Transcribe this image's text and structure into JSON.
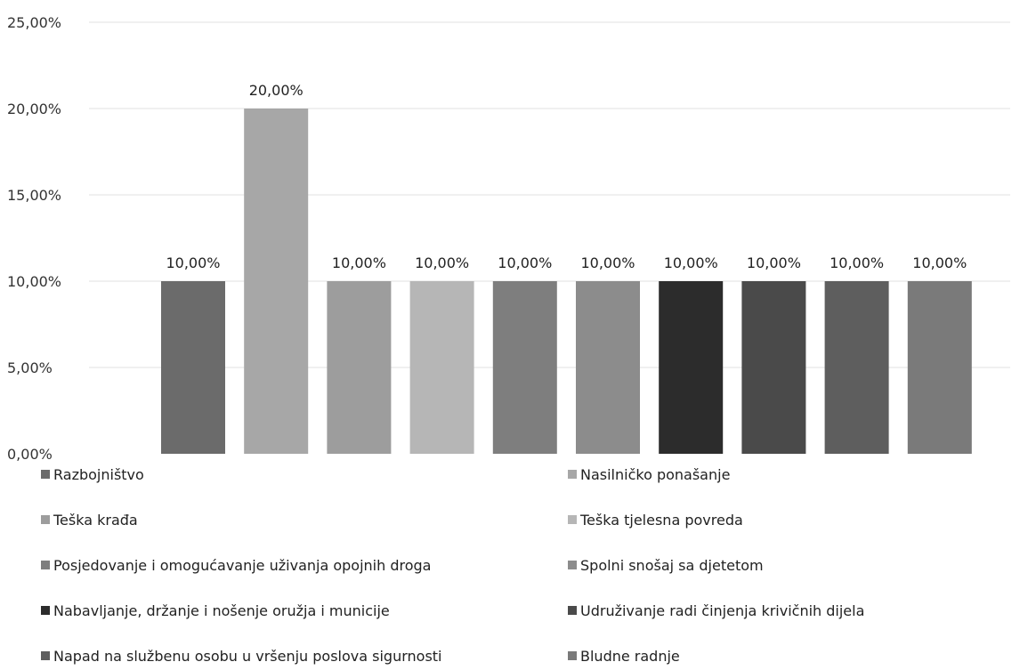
{
  "chart_data": {
    "type": "bar",
    "ylim": [
      0,
      25
    ],
    "y_ticks": [
      "0,00%",
      "5,00%",
      "10,00%",
      "15,00%",
      "20,00%",
      "25,00%"
    ],
    "grid": true,
    "legend_position": "bottom",
    "series": [
      {
        "name": "Razbojništvo",
        "value": 10,
        "label": "10,00%",
        "color": "#6b6b6b"
      },
      {
        "name": "Nasilničko ponašanje",
        "value": 20,
        "label": "20,00%",
        "color": "#a7a7a7"
      },
      {
        "name": "Teška krađa",
        "value": 10,
        "label": "10,00%",
        "color": "#9d9d9d"
      },
      {
        "name": "Teška tjelesna povreda",
        "value": 10,
        "label": "10,00%",
        "color": "#b6b6b6"
      },
      {
        "name": "Posjedovanje i omogućavanje uživanja opojnih droga",
        "value": 10,
        "label": "10,00%",
        "color": "#7e7e7e"
      },
      {
        "name": "Spolni snošaj sa djetetom",
        "value": 10,
        "label": "10,00%",
        "color": "#8c8c8c"
      },
      {
        "name": "Nabavljanje, držanje i nošenje oružja i  municije",
        "value": 10,
        "label": "10,00%",
        "color": "#2c2c2c"
      },
      {
        "name": "Udruživanje radi činjenja krivičnih dijela",
        "value": 10,
        "label": "10,00%",
        "color": "#4a4a4a"
      },
      {
        "name": "Napad na službenu osobu u vršenju poslova sigurnosti",
        "value": 10,
        "label": "10,00%",
        "color": "#5e5e5e"
      },
      {
        "name": "Bludne radnje",
        "value": 10,
        "label": "10,00%",
        "color": "#7a7a7a"
      }
    ]
  }
}
